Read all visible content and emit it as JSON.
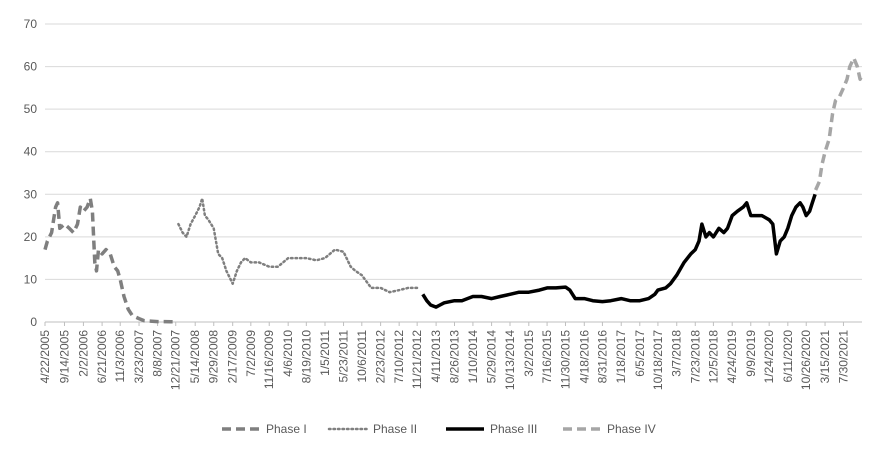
{
  "chart_data": {
    "type": "line",
    "title": "",
    "xlabel": "",
    "ylabel": "",
    "ylim": [
      0,
      70
    ],
    "yticks": [
      0,
      10,
      20,
      30,
      40,
      50,
      60,
      70
    ],
    "grid": "horizontal",
    "legend_position": "bottom",
    "x_tick_labels": [
      "4/22/2005",
      "9/14/2005",
      "2/2/2006",
      "6/21/2006",
      "11/3/2006",
      "3/23/2007",
      "8/8/2007",
      "12/21/2007",
      "5/14/2008",
      "9/29/2008",
      "2/17/2009",
      "7/2/2009",
      "11/16/2009",
      "4/6/2010",
      "8/19/2010",
      "1/5/2011",
      "5/23/2011",
      "10/6/2011",
      "2/23/2012",
      "7/10/2012",
      "11/21/2012",
      "4/11/2013",
      "8/26/2013",
      "1/10/2014",
      "5/29/2014",
      "10/13/2014",
      "3/2/2015",
      "7/16/2015",
      "11/30/2015",
      "4/18/2016",
      "8/31/2016",
      "1/18/2017",
      "6/5/2017",
      "10/18/2017",
      "3/7/2018",
      "7/23/2018",
      "12/5/2018",
      "4/24/2019",
      "9/9/2019",
      "1/24/2020",
      "6/11/2020",
      "10/26/2020",
      "3/15/2021",
      "7/30/2021"
    ],
    "x_range": [
      "4/22/2005",
      "12/15/2021"
    ],
    "series": [
      {
        "name": "Phase I",
        "color": "#7f7f7f",
        "style": "dashed",
        "points": [
          [
            "4/22/2005",
            17
          ],
          [
            "5/10/2005",
            19
          ],
          [
            "6/10/2005",
            21
          ],
          [
            "7/10/2005",
            27
          ],
          [
            "7/25/2005",
            28
          ],
          [
            "8/10/2005",
            22
          ],
          [
            "9/14/2005",
            23
          ],
          [
            "10/20/2005",
            22
          ],
          [
            "11/20/2005",
            21
          ],
          [
            "12/20/2005",
            23
          ],
          [
            "1/10/2006",
            27
          ],
          [
            "2/2/2006",
            26
          ],
          [
            "3/1/2006",
            27
          ],
          [
            "3/25/2006",
            29
          ],
          [
            "4/10/2006",
            26
          ],
          [
            "4/28/2006",
            14
          ],
          [
            "5/10/2006",
            12
          ],
          [
            "5/25/2006",
            17
          ],
          [
            "6/21/2006",
            16
          ],
          [
            "7/20/2006",
            17
          ],
          [
            "8/20/2006",
            16
          ],
          [
            "9/20/2006",
            13
          ],
          [
            "10/15/2006",
            12
          ],
          [
            "11/3/2006",
            10
          ],
          [
            "12/1/2006",
            6
          ],
          [
            "1/1/2007",
            3
          ],
          [
            "2/1/2007",
            1.5
          ],
          [
            "3/23/2007",
            0.8
          ],
          [
            "5/1/2007",
            0.3
          ],
          [
            "6/15/2007",
            0.2
          ],
          [
            "8/8/2007",
            0.1
          ],
          [
            "10/1/2007",
            0.1
          ],
          [
            "11/15/2007",
            0.05
          ],
          [
            "12/21/2007",
            0.05
          ]
        ]
      },
      {
        "name": "Phase II",
        "color": "#7f7f7f",
        "style": "dotted",
        "points": [
          [
            "1/10/2008",
            23
          ],
          [
            "2/10/2008",
            21
          ],
          [
            "3/10/2008",
            20
          ],
          [
            "4/10/2008",
            23
          ],
          [
            "5/14/2008",
            25
          ],
          [
            "6/15/2008",
            27
          ],
          [
            "7/5/2008",
            29
          ],
          [
            "7/25/2008",
            25
          ],
          [
            "8/20/2008",
            24
          ],
          [
            "9/29/2008",
            22
          ],
          [
            "11/1/2008",
            16
          ],
          [
            "12/1/2008",
            15
          ],
          [
            "1/1/2009",
            12
          ],
          [
            "2/17/2009",
            9
          ],
          [
            "3/20/2009",
            12
          ],
          [
            "4/20/2009",
            14
          ],
          [
            "5/20/2009",
            15
          ],
          [
            "7/2/2009",
            14
          ],
          [
            "9/1/2009",
            14
          ],
          [
            "11/16/2009",
            13
          ],
          [
            "1/20/2010",
            13
          ],
          [
            "4/6/2010",
            15
          ],
          [
            "6/1/2010",
            15
          ],
          [
            "8/19/2010",
            15
          ],
          [
            "11/1/2010",
            14.5
          ],
          [
            "1/5/2011",
            15
          ],
          [
            "3/20/2011",
            17
          ],
          [
            "5/23/2011",
            16.5
          ],
          [
            "7/15/2011",
            13
          ],
          [
            "8/20/2011",
            12
          ],
          [
            "10/6/2011",
            11
          ],
          [
            "12/15/2011",
            8
          ],
          [
            "2/23/2012",
            8
          ],
          [
            "5/1/2012",
            7
          ],
          [
            "7/10/2012",
            7.5
          ],
          [
            "9/15/2012",
            8
          ],
          [
            "11/21/2012",
            8
          ]
        ]
      },
      {
        "name": "Phase III",
        "color": "#000000",
        "style": "solid",
        "points": [
          [
            "1/2/2013",
            6.5
          ],
          [
            "2/1/2013",
            5
          ],
          [
            "3/1/2013",
            4
          ],
          [
            "4/11/2013",
            3.5
          ],
          [
            "5/10/2013",
            4
          ],
          [
            "6/10/2013",
            4.5
          ],
          [
            "8/26/2013",
            5
          ],
          [
            "10/20/2013",
            5
          ],
          [
            "1/10/2014",
            6
          ],
          [
            "3/15/2014",
            6
          ],
          [
            "5/29/2014",
            5.5
          ],
          [
            "8/1/2014",
            6
          ],
          [
            "10/13/2014",
            6.5
          ],
          [
            "12/20/2014",
            7
          ],
          [
            "3/2/2015",
            7
          ],
          [
            "5/20/2015",
            7.5
          ],
          [
            "7/16/2015",
            8
          ],
          [
            "9/20/2015",
            8
          ],
          [
            "11/30/2015",
            8.2
          ],
          [
            "1/1/2016",
            7.5
          ],
          [
            "2/10/2016",
            5.5
          ],
          [
            "4/18/2016",
            5.5
          ],
          [
            "6/20/2016",
            5
          ],
          [
            "8/31/2016",
            4.8
          ],
          [
            "11/1/2016",
            5
          ],
          [
            "1/18/2017",
            5.5
          ],
          [
            "3/25/2017",
            5
          ],
          [
            "6/5/2017",
            5
          ],
          [
            "8/10/2017",
            5.5
          ],
          [
            "9/25/2017",
            6.5
          ],
          [
            "10/18/2017",
            7.5
          ],
          [
            "12/15/2017",
            8
          ],
          [
            "1/20/2018",
            9
          ],
          [
            "3/7/2018",
            11
          ],
          [
            "5/1/2018",
            14
          ],
          [
            "6/20/2018",
            16
          ],
          [
            "7/23/2018",
            17
          ],
          [
            "8/20/2018",
            19
          ],
          [
            "9/10/2018",
            23
          ],
          [
            "10/10/2018",
            20
          ],
          [
            "11/5/2018",
            21
          ],
          [
            "12/5/2018",
            20
          ],
          [
            "1/15/2019",
            22
          ],
          [
            "2/20/2019",
            21
          ],
          [
            "3/20/2019",
            22
          ],
          [
            "4/24/2019",
            25
          ],
          [
            "6/1/2019",
            26
          ],
          [
            "7/15/2019",
            27
          ],
          [
            "8/10/2019",
            28
          ],
          [
            "9/9/2019",
            25
          ],
          [
            "10/20/2019",
            25
          ],
          [
            "12/1/2019",
            25
          ],
          [
            "1/24/2020",
            24
          ],
          [
            "2/20/2020",
            23
          ],
          [
            "3/18/2020",
            16
          ],
          [
            "4/15/2020",
            19
          ],
          [
            "5/15/2020",
            20
          ],
          [
            "6/11/2020",
            22
          ],
          [
            "7/10/2020",
            25
          ],
          [
            "8/10/2020",
            27
          ],
          [
            "9/10/2020",
            28
          ],
          [
            "10/1/2020",
            27
          ],
          [
            "10/26/2020",
            25
          ],
          [
            "11/20/2020",
            26
          ],
          [
            "12/10/2020",
            28
          ],
          [
            "12/31/2020",
            30
          ]
        ]
      },
      {
        "name": "Phase IV",
        "color": "#a6a6a6",
        "style": "dashed",
        "points": [
          [
            "1/4/2021",
            31
          ],
          [
            "2/1/2021",
            33
          ],
          [
            "2/20/2021",
            37
          ],
          [
            "3/15/2021",
            40
          ],
          [
            "4/15/2021",
            43
          ],
          [
            "5/10/2021",
            49
          ],
          [
            "6/1/2021",
            52
          ],
          [
            "7/1/2021",
            53
          ],
          [
            "7/30/2021",
            55
          ],
          [
            "8/25/2021",
            57
          ],
          [
            "9/15/2021",
            60
          ],
          [
            "10/15/2021",
            62
          ],
          [
            "11/10/2021",
            60
          ],
          [
            "12/1/2021",
            57
          ],
          [
            "12/15/2021",
            58
          ]
        ]
      }
    ]
  }
}
